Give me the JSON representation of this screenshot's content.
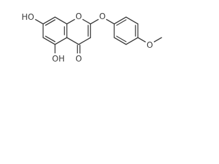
{
  "nodes": [
    {
      "label": "HO"
    },
    {
      "label": "OH"
    },
    {
      "label": "O"
    },
    {
      "label": "O"
    },
    {
      "label": "O"
    },
    {
      "label": "O"
    }
  ]
}
